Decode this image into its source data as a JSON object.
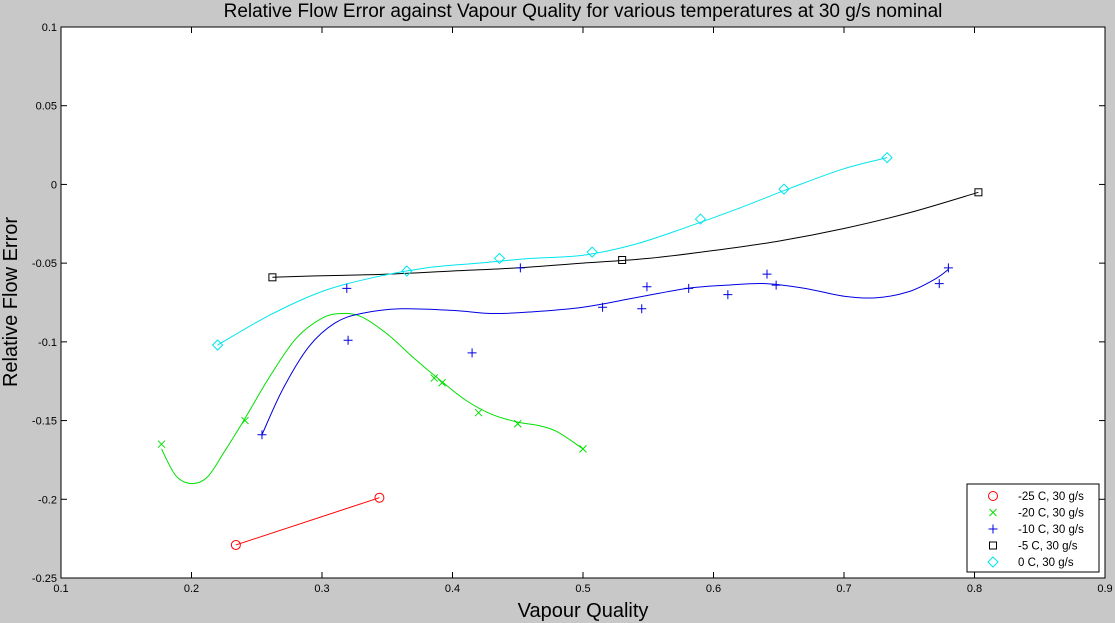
{
  "chart_data": {
    "type": "scatter",
    "title": "Relative Flow Error against Vapour Quality for various temperatures at 30 g/s nominal",
    "xlabel": "Vapour Quality",
    "ylabel": "Relative Flow Error",
    "xlim": [
      0.1,
      0.9
    ],
    "ylim": [
      -0.25,
      0.1
    ],
    "xticks": [
      0.1,
      0.2,
      0.3,
      0.4,
      0.5,
      0.6,
      0.7,
      0.8,
      0.9
    ],
    "yticks": [
      -0.25,
      -0.2,
      -0.15,
      -0.1,
      -0.05,
      0,
      0.05,
      0.1
    ],
    "xtick_labels": [
      "0.1",
      "0.2",
      "0.3",
      "0.4",
      "0.5",
      "0.6",
      "0.7",
      "0.8",
      "0.9"
    ],
    "ytick_labels": [
      "-0.25",
      "-0.2",
      "-0.15",
      "-0.1",
      "-0.05",
      "0",
      "0.05",
      "0.1"
    ],
    "grid": false,
    "legend_position": "bottom-right",
    "series": [
      {
        "name": "-25 C, 30 g/s",
        "color": "#ff0000",
        "marker": "circle",
        "points": [
          [
            0.234,
            -0.229
          ],
          [
            0.344,
            -0.199
          ]
        ],
        "fit": [
          [
            0.234,
            -0.229
          ],
          [
            0.344,
            -0.199
          ]
        ]
      },
      {
        "name": "-20 C, 30 g/s",
        "color": "#00e000",
        "marker": "x",
        "points": [
          [
            0.177,
            -0.165
          ],
          [
            0.241,
            -0.15
          ],
          [
            0.386,
            -0.123
          ],
          [
            0.392,
            -0.126
          ],
          [
            0.42,
            -0.145
          ],
          [
            0.45,
            -0.152
          ],
          [
            0.5,
            -0.168
          ]
        ],
        "fit": [
          [
            0.177,
            -0.168
          ],
          [
            0.188,
            -0.185
          ],
          [
            0.2,
            -0.19
          ],
          [
            0.212,
            -0.186
          ],
          [
            0.225,
            -0.17
          ],
          [
            0.24,
            -0.15
          ],
          [
            0.26,
            -0.122
          ],
          [
            0.28,
            -0.098
          ],
          [
            0.3,
            -0.085
          ],
          [
            0.315,
            -0.082
          ],
          [
            0.33,
            -0.084
          ],
          [
            0.35,
            -0.095
          ],
          [
            0.37,
            -0.11
          ],
          [
            0.39,
            -0.124
          ],
          [
            0.41,
            -0.137
          ],
          [
            0.43,
            -0.146
          ],
          [
            0.45,
            -0.151
          ],
          [
            0.465,
            -0.153
          ],
          [
            0.48,
            -0.157
          ],
          [
            0.5,
            -0.168
          ]
        ]
      },
      {
        "name": "-10 C, 30 g/s",
        "color": "#0000e0",
        "marker": "plus",
        "points": [
          [
            0.254,
            -0.159
          ],
          [
            0.319,
            -0.066
          ],
          [
            0.32,
            -0.099
          ],
          [
            0.415,
            -0.107
          ],
          [
            0.452,
            -0.053
          ],
          [
            0.515,
            -0.078
          ],
          [
            0.545,
            -0.079
          ],
          [
            0.549,
            -0.065
          ],
          [
            0.581,
            -0.066
          ],
          [
            0.611,
            -0.07
          ],
          [
            0.641,
            -0.057
          ],
          [
            0.648,
            -0.064
          ],
          [
            0.773,
            -0.063
          ],
          [
            0.78,
            -0.053
          ]
        ],
        "fit": [
          [
            0.254,
            -0.159
          ],
          [
            0.27,
            -0.13
          ],
          [
            0.29,
            -0.103
          ],
          [
            0.31,
            -0.088
          ],
          [
            0.33,
            -0.082
          ],
          [
            0.36,
            -0.079
          ],
          [
            0.4,
            -0.08
          ],
          [
            0.43,
            -0.082
          ],
          [
            0.46,
            -0.081
          ],
          [
            0.5,
            -0.078
          ],
          [
            0.54,
            -0.072
          ],
          [
            0.58,
            -0.066
          ],
          [
            0.61,
            -0.064
          ],
          [
            0.64,
            -0.063
          ],
          [
            0.67,
            -0.066
          ],
          [
            0.7,
            -0.071
          ],
          [
            0.725,
            -0.072
          ],
          [
            0.75,
            -0.068
          ],
          [
            0.77,
            -0.06
          ],
          [
            0.78,
            -0.054
          ]
        ]
      },
      {
        "name": "-5 C, 30 g/s",
        "color": "#000000",
        "marker": "square",
        "points": [
          [
            0.262,
            -0.059
          ],
          [
            0.53,
            -0.048
          ],
          [
            0.803,
            -0.005
          ]
        ],
        "fit": [
          [
            0.262,
            -0.059
          ],
          [
            0.3,
            -0.058
          ],
          [
            0.35,
            -0.057
          ],
          [
            0.4,
            -0.055
          ],
          [
            0.45,
            -0.053
          ],
          [
            0.5,
            -0.05
          ],
          [
            0.55,
            -0.047
          ],
          [
            0.6,
            -0.042
          ],
          [
            0.65,
            -0.036
          ],
          [
            0.7,
            -0.028
          ],
          [
            0.75,
            -0.018
          ],
          [
            0.803,
            -0.005
          ]
        ]
      },
      {
        "name": "0 C, 30 g/s",
        "color": "#00e5ee",
        "marker": "diamond",
        "points": [
          [
            0.22,
            -0.102
          ],
          [
            0.365,
            -0.055
          ],
          [
            0.436,
            -0.047
          ],
          [
            0.507,
            -0.043
          ],
          [
            0.59,
            -0.022
          ],
          [
            0.654,
            -0.003
          ],
          [
            0.733,
            0.017
          ]
        ],
        "fit": [
          [
            0.22,
            -0.102
          ],
          [
            0.26,
            -0.083
          ],
          [
            0.3,
            -0.068
          ],
          [
            0.34,
            -0.059
          ],
          [
            0.38,
            -0.053
          ],
          [
            0.42,
            -0.05
          ],
          [
            0.46,
            -0.047
          ],
          [
            0.5,
            -0.045
          ],
          [
            0.54,
            -0.038
          ],
          [
            0.58,
            -0.027
          ],
          [
            0.62,
            -0.015
          ],
          [
            0.66,
            -0.002
          ],
          [
            0.7,
            0.01
          ],
          [
            0.733,
            0.017
          ]
        ]
      }
    ]
  }
}
